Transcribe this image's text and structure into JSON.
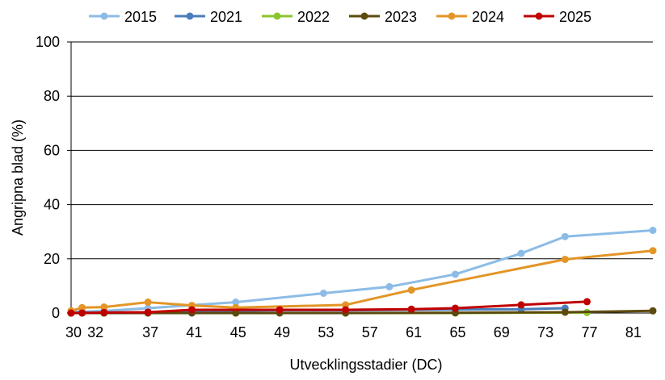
{
  "chart_data": {
    "type": "line",
    "title": "",
    "xlabel": "Utvecklingsstadier (DC)",
    "ylabel": "Angripna blad (%)",
    "ylim": [
      0,
      100
    ],
    "yticks": [
      0,
      20,
      40,
      60,
      80,
      100
    ],
    "xlim": [
      30,
      83
    ],
    "xticks": [
      30,
      32,
      37,
      41,
      45,
      49,
      53,
      57,
      61,
      65,
      69,
      73,
      77,
      81
    ],
    "grid": "horizontal",
    "legend_position": "top",
    "series": [
      {
        "name": "2015",
        "color": "#8CBCE6",
        "points": [
          [
            30,
            0.5
          ],
          [
            31,
            0.5
          ],
          [
            33,
            0.8
          ],
          [
            37,
            1.8
          ],
          [
            45,
            4.0
          ],
          [
            53,
            7.3
          ],
          [
            59,
            9.7
          ],
          [
            65,
            14.3
          ],
          [
            71,
            22.0
          ],
          [
            75,
            28.2
          ],
          [
            83,
            30.5
          ]
        ]
      },
      {
        "name": "2021",
        "color": "#4A7EBB",
        "points": [
          [
            30,
            0.0
          ],
          [
            31,
            0.2
          ],
          [
            33,
            0.2
          ],
          [
            37,
            0.3
          ],
          [
            41,
            0.5
          ],
          [
            45,
            0.8
          ],
          [
            49,
            1.0
          ],
          [
            55,
            1.0
          ],
          [
            61,
            1.2
          ],
          [
            65,
            1.3
          ],
          [
            71,
            1.4
          ],
          [
            75,
            1.8
          ]
        ]
      },
      {
        "name": "2022",
        "color": "#8DC42E",
        "points": [
          [
            30,
            0.0
          ],
          [
            31,
            0.0
          ],
          [
            33,
            0.0
          ],
          [
            37,
            0.0
          ],
          [
            45,
            0.0
          ],
          [
            55,
            0.0
          ],
          [
            65,
            0.0
          ],
          [
            77,
            0.2
          ]
        ]
      },
      {
        "name": "2023",
        "color": "#5C4A0F",
        "points": [
          [
            30,
            0.0
          ],
          [
            31,
            0.0
          ],
          [
            33,
            0.0
          ],
          [
            37,
            0.0
          ],
          [
            41,
            0.0
          ],
          [
            45,
            0.0
          ],
          [
            49,
            0.0
          ],
          [
            55,
            0.0
          ],
          [
            65,
            0.1
          ],
          [
            75,
            0.3
          ],
          [
            83,
            0.8
          ]
        ]
      },
      {
        "name": "2024",
        "color": "#E39527",
        "points": [
          [
            30,
            0.8
          ],
          [
            31,
            2.0
          ],
          [
            33,
            2.2
          ],
          [
            37,
            4.0
          ],
          [
            41,
            2.8
          ],
          [
            45,
            2.0
          ],
          [
            55,
            3.0
          ],
          [
            61,
            8.5
          ],
          [
            75,
            19.8
          ],
          [
            83,
            23.0
          ]
        ]
      },
      {
        "name": "2025",
        "color": "#C00000",
        "points": [
          [
            30,
            0.0
          ],
          [
            31,
            0.0
          ],
          [
            33,
            0.2
          ],
          [
            37,
            0.3
          ],
          [
            41,
            1.2
          ],
          [
            49,
            1.2
          ],
          [
            55,
            1.2
          ],
          [
            61,
            1.4
          ],
          [
            65,
            1.8
          ],
          [
            71,
            3.0
          ],
          [
            77,
            4.2
          ]
        ]
      }
    ]
  }
}
